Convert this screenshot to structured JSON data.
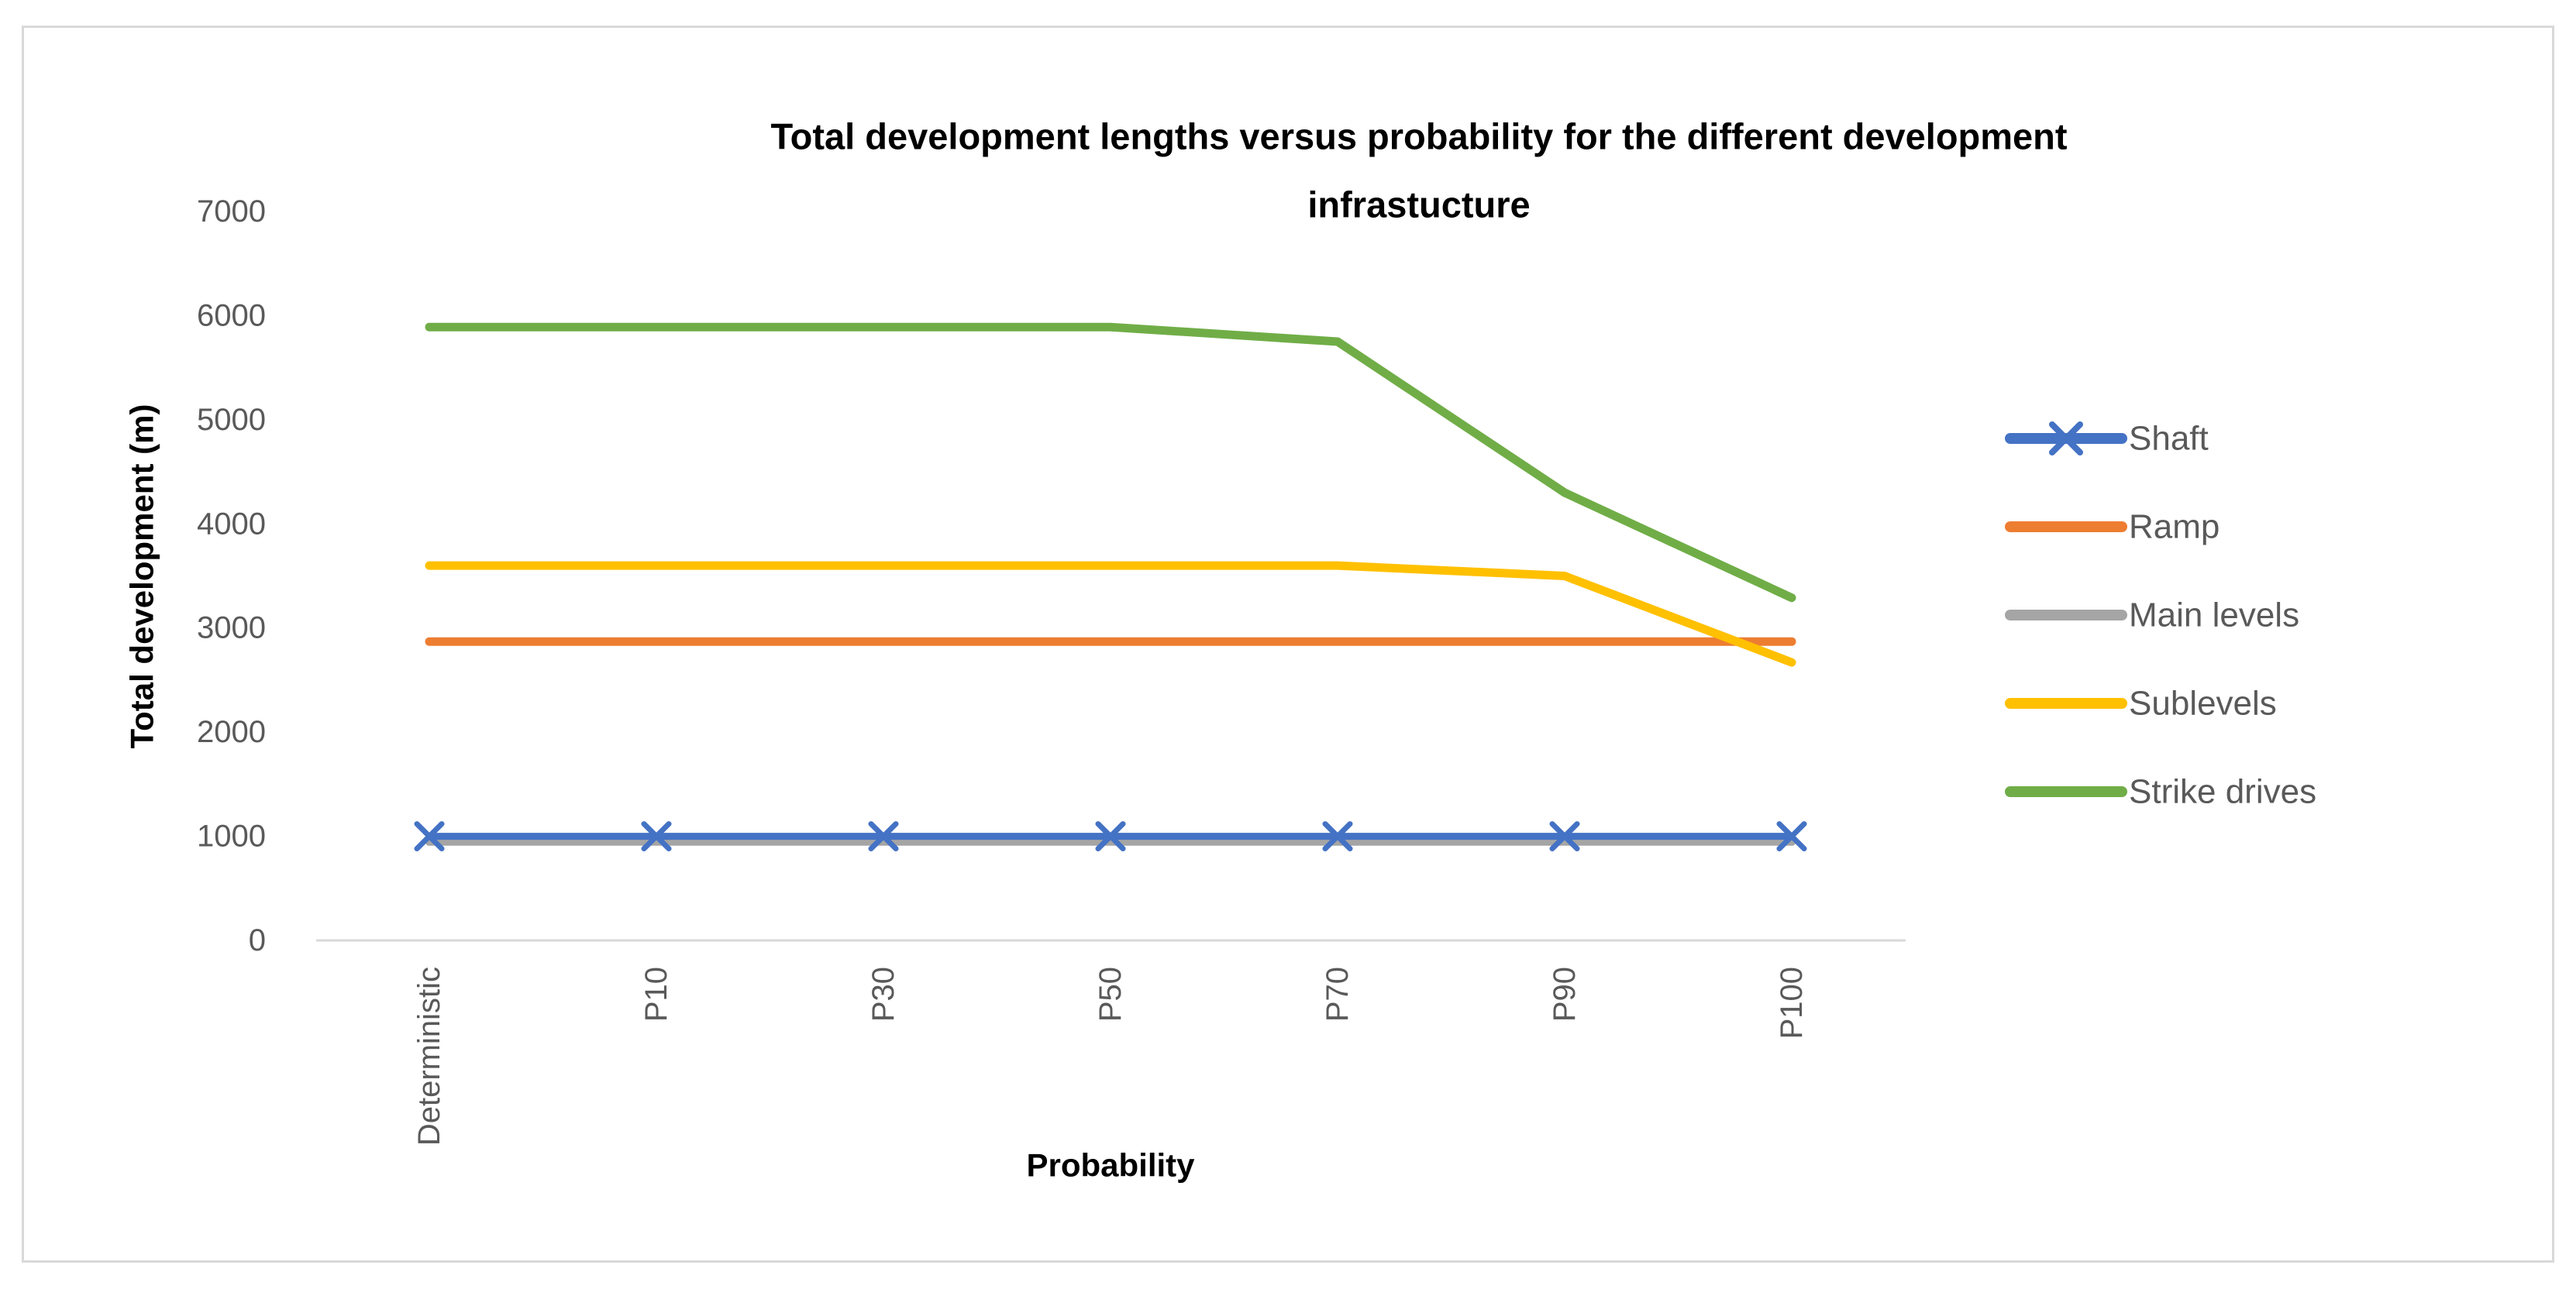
{
  "chart_data": {
    "type": "line",
    "title": "Total development lengths versus probability for the different development infrastucture",
    "title_lines": [
      "Total development lengths versus probability for the different development",
      "infrastucture"
    ],
    "xlabel": "Probability",
    "ylabel": "Total development (m)",
    "categories": [
      "Deterministic",
      "P10",
      "P30",
      "P50",
      "P70",
      "P90",
      "P100"
    ],
    "series": [
      {
        "name": "Shaft",
        "color": "#4472C4",
        "marker": "x",
        "values": [
          1000,
          1000,
          1000,
          1000,
          1000,
          1000,
          1000
        ]
      },
      {
        "name": "Ramp",
        "color": "#ED7D31",
        "marker": "none",
        "values": [
          2870,
          2870,
          2870,
          2870,
          2870,
          2870,
          2870
        ]
      },
      {
        "name": "Main levels",
        "color": "#A5A5A5",
        "marker": "none",
        "values": [
          950,
          950,
          950,
          950,
          950,
          950,
          950
        ]
      },
      {
        "name": "Sublevels",
        "color": "#FFC000",
        "marker": "none",
        "values": [
          3600,
          3600,
          3600,
          3600,
          3600,
          3500,
          2670
        ]
      },
      {
        "name": "Strike drives",
        "color": "#70AD47",
        "marker": "none",
        "values": [
          5890,
          5890,
          5890,
          5890,
          5750,
          4300,
          3290
        ]
      }
    ],
    "ylim": [
      0,
      7000
    ],
    "ytick_step": 1000,
    "ytick_labels": [
      "0",
      "1000",
      "2000",
      "3000",
      "4000",
      "5000",
      "6000",
      "7000"
    ],
    "grid": false,
    "legend_position": "right",
    "colors": {
      "axis_line": "#D9D9D9",
      "tick_text": "#595959",
      "title_text": "#000000",
      "frame_border": "#D9D9D9",
      "background": "#FFFFFF"
    }
  }
}
